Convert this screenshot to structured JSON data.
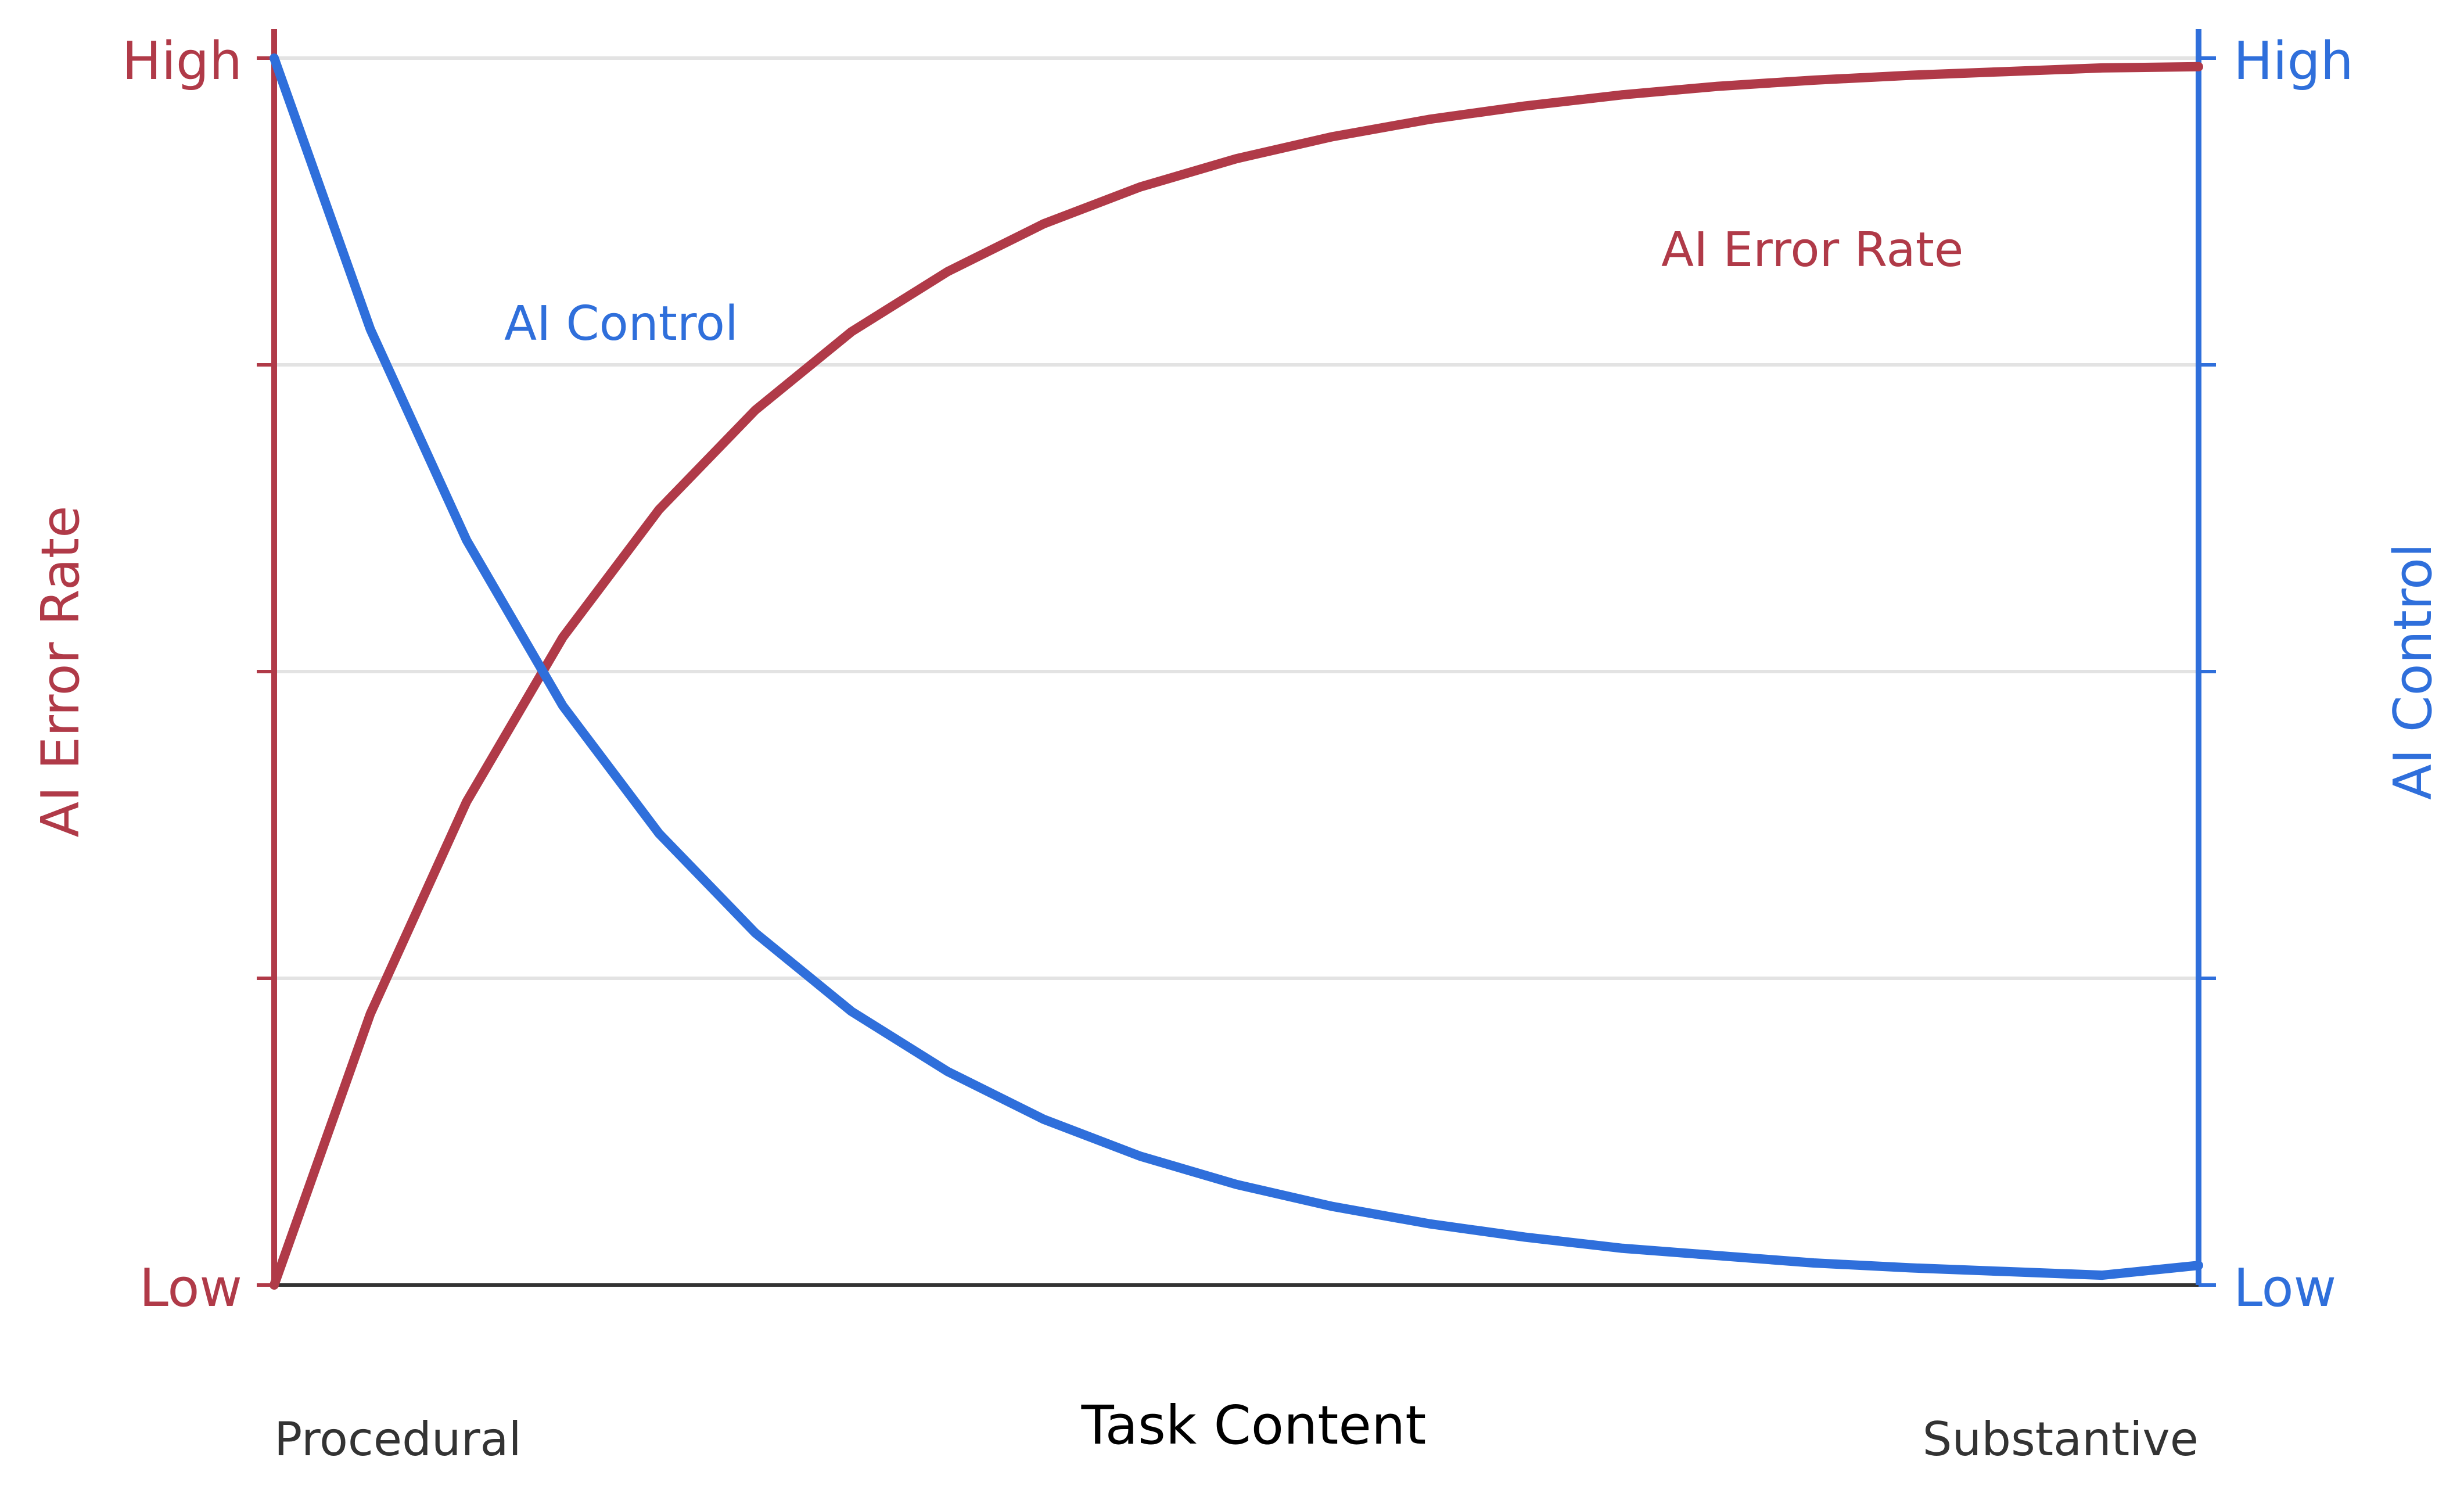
{
  "chart_data": {
    "type": "line",
    "xlabel": "Task Content",
    "x_range_labels": {
      "start": "Procedural",
      "end": "Substantive"
    },
    "left_axis": {
      "label": "AI Error Rate",
      "ticks": {
        "low": "Low",
        "high": "High"
      },
      "color": "#b03a48",
      "ylim": [
        0,
        1
      ]
    },
    "right_axis": {
      "label": "AI Control",
      "ticks": {
        "low": "Low",
        "high": "High"
      },
      "color": "#2f6fdb",
      "ylim": [
        0,
        1
      ]
    },
    "grid": true,
    "x": [
      0,
      0.05,
      0.1,
      0.15,
      0.2,
      0.25,
      0.3,
      0.35,
      0.4,
      0.45,
      0.5,
      0.55,
      0.6,
      0.65,
      0.7,
      0.75,
      0.8,
      0.85,
      0.9,
      0.95,
      1.0
    ],
    "series": [
      {
        "name": "AI Error Rate",
        "axis": "left",
        "color": "#b03a48",
        "values": [
          0.0,
          0.221,
          0.394,
          0.528,
          0.632,
          0.713,
          0.777,
          0.826,
          0.865,
          0.895,
          0.918,
          0.936,
          0.95,
          0.961,
          0.97,
          0.977,
          0.982,
          0.986,
          0.989,
          0.992,
          0.993
        ]
      },
      {
        "name": "AI Control",
        "axis": "right",
        "color": "#2f6fdb",
        "values": [
          1.0,
          0.779,
          0.607,
          0.472,
          0.368,
          0.287,
          0.223,
          0.174,
          0.135,
          0.105,
          0.082,
          0.064,
          0.05,
          0.039,
          0.03,
          0.024,
          0.018,
          0.014,
          0.011,
          0.008,
          0.016
        ]
      }
    ]
  }
}
